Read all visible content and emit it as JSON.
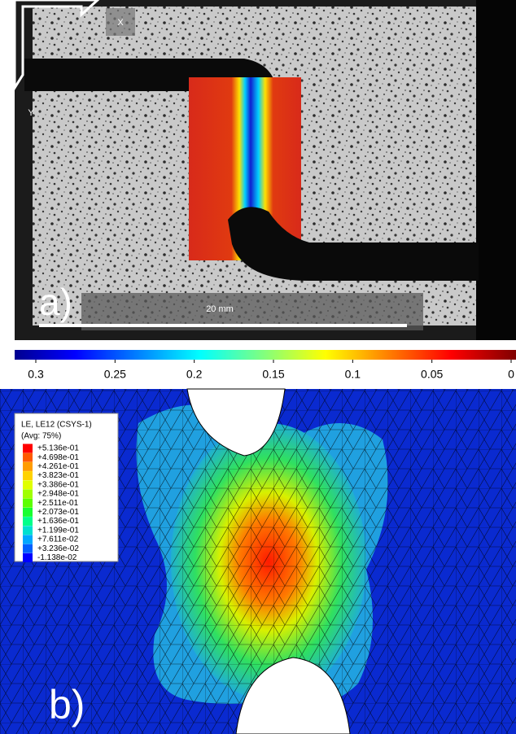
{
  "panel_a": {
    "label": "a)",
    "axis_x": "X",
    "axis_y": "Y",
    "scale_bar": "20 mm"
  },
  "colorbar": {
    "lim": [
      0.3,
      0
    ],
    "ticks": [
      0.3,
      0.25,
      0.2,
      0.15,
      0.1,
      0.05,
      0
    ]
  },
  "panel_b": {
    "label": "b)",
    "legend": {
      "title": "LE, LE12 (CSYS-1)",
      "subtitle": "(Avg: 75%)",
      "entries": [
        "+5.136e-01",
        "+4.698e-01",
        "+4.261e-01",
        "+3.823e-01",
        "+3.386e-01",
        "+2.948e-01",
        "+2.511e-01",
        "+2.073e-01",
        "+1.636e-01",
        "+1.199e-01",
        "+7.611e-02",
        "+3.236e-02",
        "-1.138e-02"
      ]
    }
  }
}
